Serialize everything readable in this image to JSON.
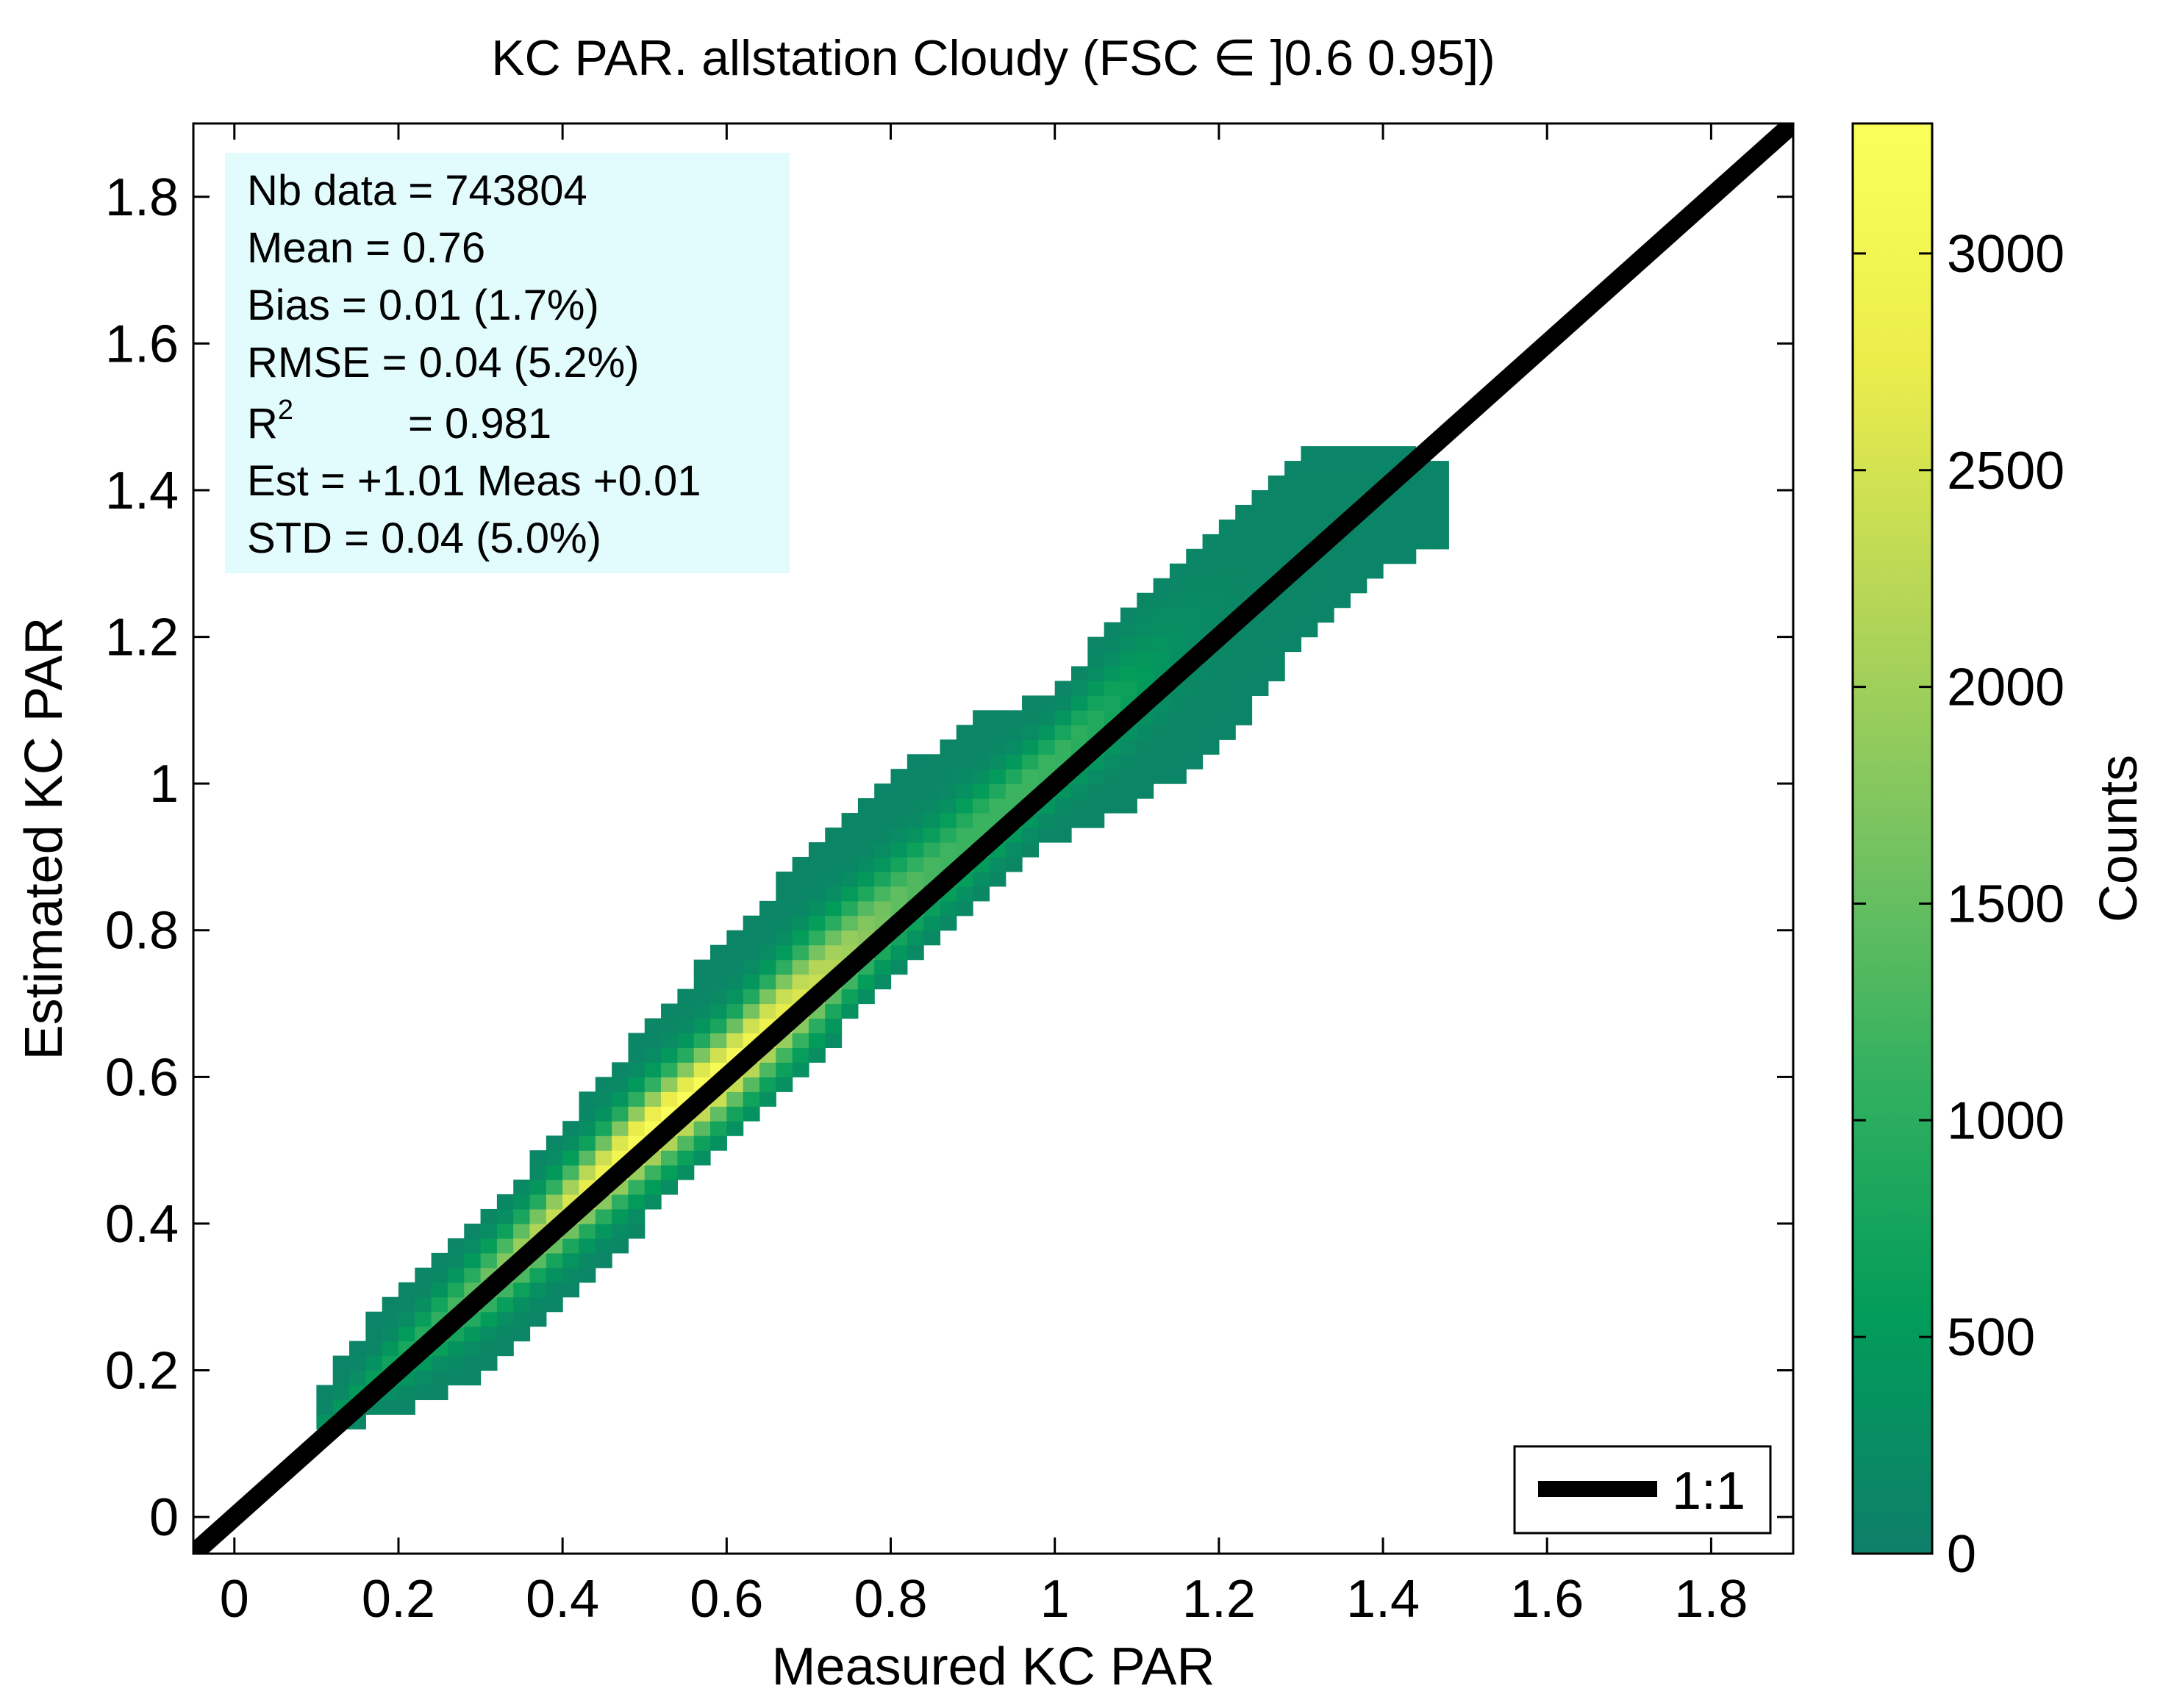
{
  "chart_data": {
    "type": "heatmap",
    "title": "KC PAR. allstation  Cloudy (FSC ∈ ]0.6 0.95])",
    "xlabel": "Measured KC PAR",
    "ylabel": "Estimated KC PAR",
    "xlim": [
      -0.05,
      1.9
    ],
    "ylim": [
      -0.05,
      1.9
    ],
    "x_ticks": [
      0,
      0.2,
      0.4,
      0.6,
      0.8,
      1.0,
      1.2,
      1.4,
      1.6,
      1.8
    ],
    "x_tick_labels": [
      "0",
      "0.2",
      "0.4",
      "0.6",
      "0.8",
      "1",
      "1.2",
      "1.4",
      "1.6",
      "1.8"
    ],
    "y_ticks": [
      0,
      0.2,
      0.4,
      0.6,
      0.8,
      1.0,
      1.2,
      1.4,
      1.6,
      1.8
    ],
    "y_tick_labels": [
      "0",
      "0.2",
      "0.4",
      "0.6",
      "0.8",
      "1",
      "1.2",
      "1.4",
      "1.6",
      "1.8"
    ],
    "colorbar": {
      "label": "Counts",
      "range": [
        0,
        3300
      ],
      "ticks": [
        0,
        500,
        1000,
        1500,
        2000,
        2500,
        3000
      ],
      "tick_labels": [
        "0",
        "500",
        "1000",
        "1500",
        "2000",
        "2500",
        "3000"
      ],
      "colormap": [
        "#0e7f6a",
        "#029c5a",
        "#33b060",
        "#78c361",
        "#b6d657",
        "#eced4c",
        "#fbff5b"
      ]
    },
    "density": {
      "bin_width": 0.02,
      "x_range": [
        0.1,
        1.47
      ],
      "y_lower": [
        [
          0.1,
          0.12
        ],
        [
          0.2,
          0.15
        ],
        [
          0.3,
          0.2
        ],
        [
          0.4,
          0.3
        ],
        [
          0.5,
          0.41
        ],
        [
          0.6,
          0.53
        ],
        [
          0.7,
          0.62
        ],
        [
          0.8,
          0.75
        ],
        [
          0.9,
          0.84
        ],
        [
          1.0,
          0.93
        ],
        [
          1.1,
          0.98
        ],
        [
          1.2,
          1.05
        ],
        [
          1.3,
          1.2
        ],
        [
          1.4,
          1.3
        ],
        [
          1.47,
          1.33
        ]
      ],
      "y_upper": [
        [
          0.1,
          0.16
        ],
        [
          0.12,
          0.2
        ],
        [
          0.2,
          0.3
        ],
        [
          0.3,
          0.4
        ],
        [
          0.4,
          0.52
        ],
        [
          0.5,
          0.66
        ],
        [
          0.6,
          0.78
        ],
        [
          0.7,
          0.9
        ],
        [
          0.8,
          1.0
        ],
        [
          0.9,
          1.08
        ],
        [
          1.0,
          1.12
        ],
        [
          1.1,
          1.25
        ],
        [
          1.2,
          1.35
        ],
        [
          1.3,
          1.44
        ],
        [
          1.4,
          1.45
        ],
        [
          1.47,
          1.43
        ]
      ],
      "ridge": [
        [
          0.1,
          0.12
        ],
        [
          0.3,
          0.31
        ],
        [
          0.5,
          0.52
        ],
        [
          0.6,
          0.61
        ],
        [
          0.8,
          0.83
        ],
        [
          1.0,
          1.03
        ],
        [
          1.2,
          1.24
        ],
        [
          1.4,
          1.42
        ]
      ],
      "peak": {
        "x": 0.55,
        "y": 0.56,
        "count": 3300
      }
    },
    "series": [
      {
        "name": "1:1",
        "type": "line",
        "x": [
          -0.05,
          1.9
        ],
        "y": [
          -0.05,
          1.9
        ],
        "color": "#000000"
      }
    ],
    "legend": {
      "entries": [
        "1:1"
      ],
      "position": "bottom-right"
    },
    "grid": false
  },
  "stats": {
    "nb_data": "Nb data  = 743804",
    "mean": "Mean   =  0.76",
    "bias": "Bias     =  0.01 (1.7%)",
    "rmse": "RMSE  =  0.04  (5.2%)",
    "r2_base": "R",
    "r2_sup": "2",
    "r2_value": "=  0.981",
    "fit": "Est  = +1.01 Meas +0.01",
    "std": "STD      = 0.04 (5.0%)",
    "box_color": "#e2fbfd"
  }
}
